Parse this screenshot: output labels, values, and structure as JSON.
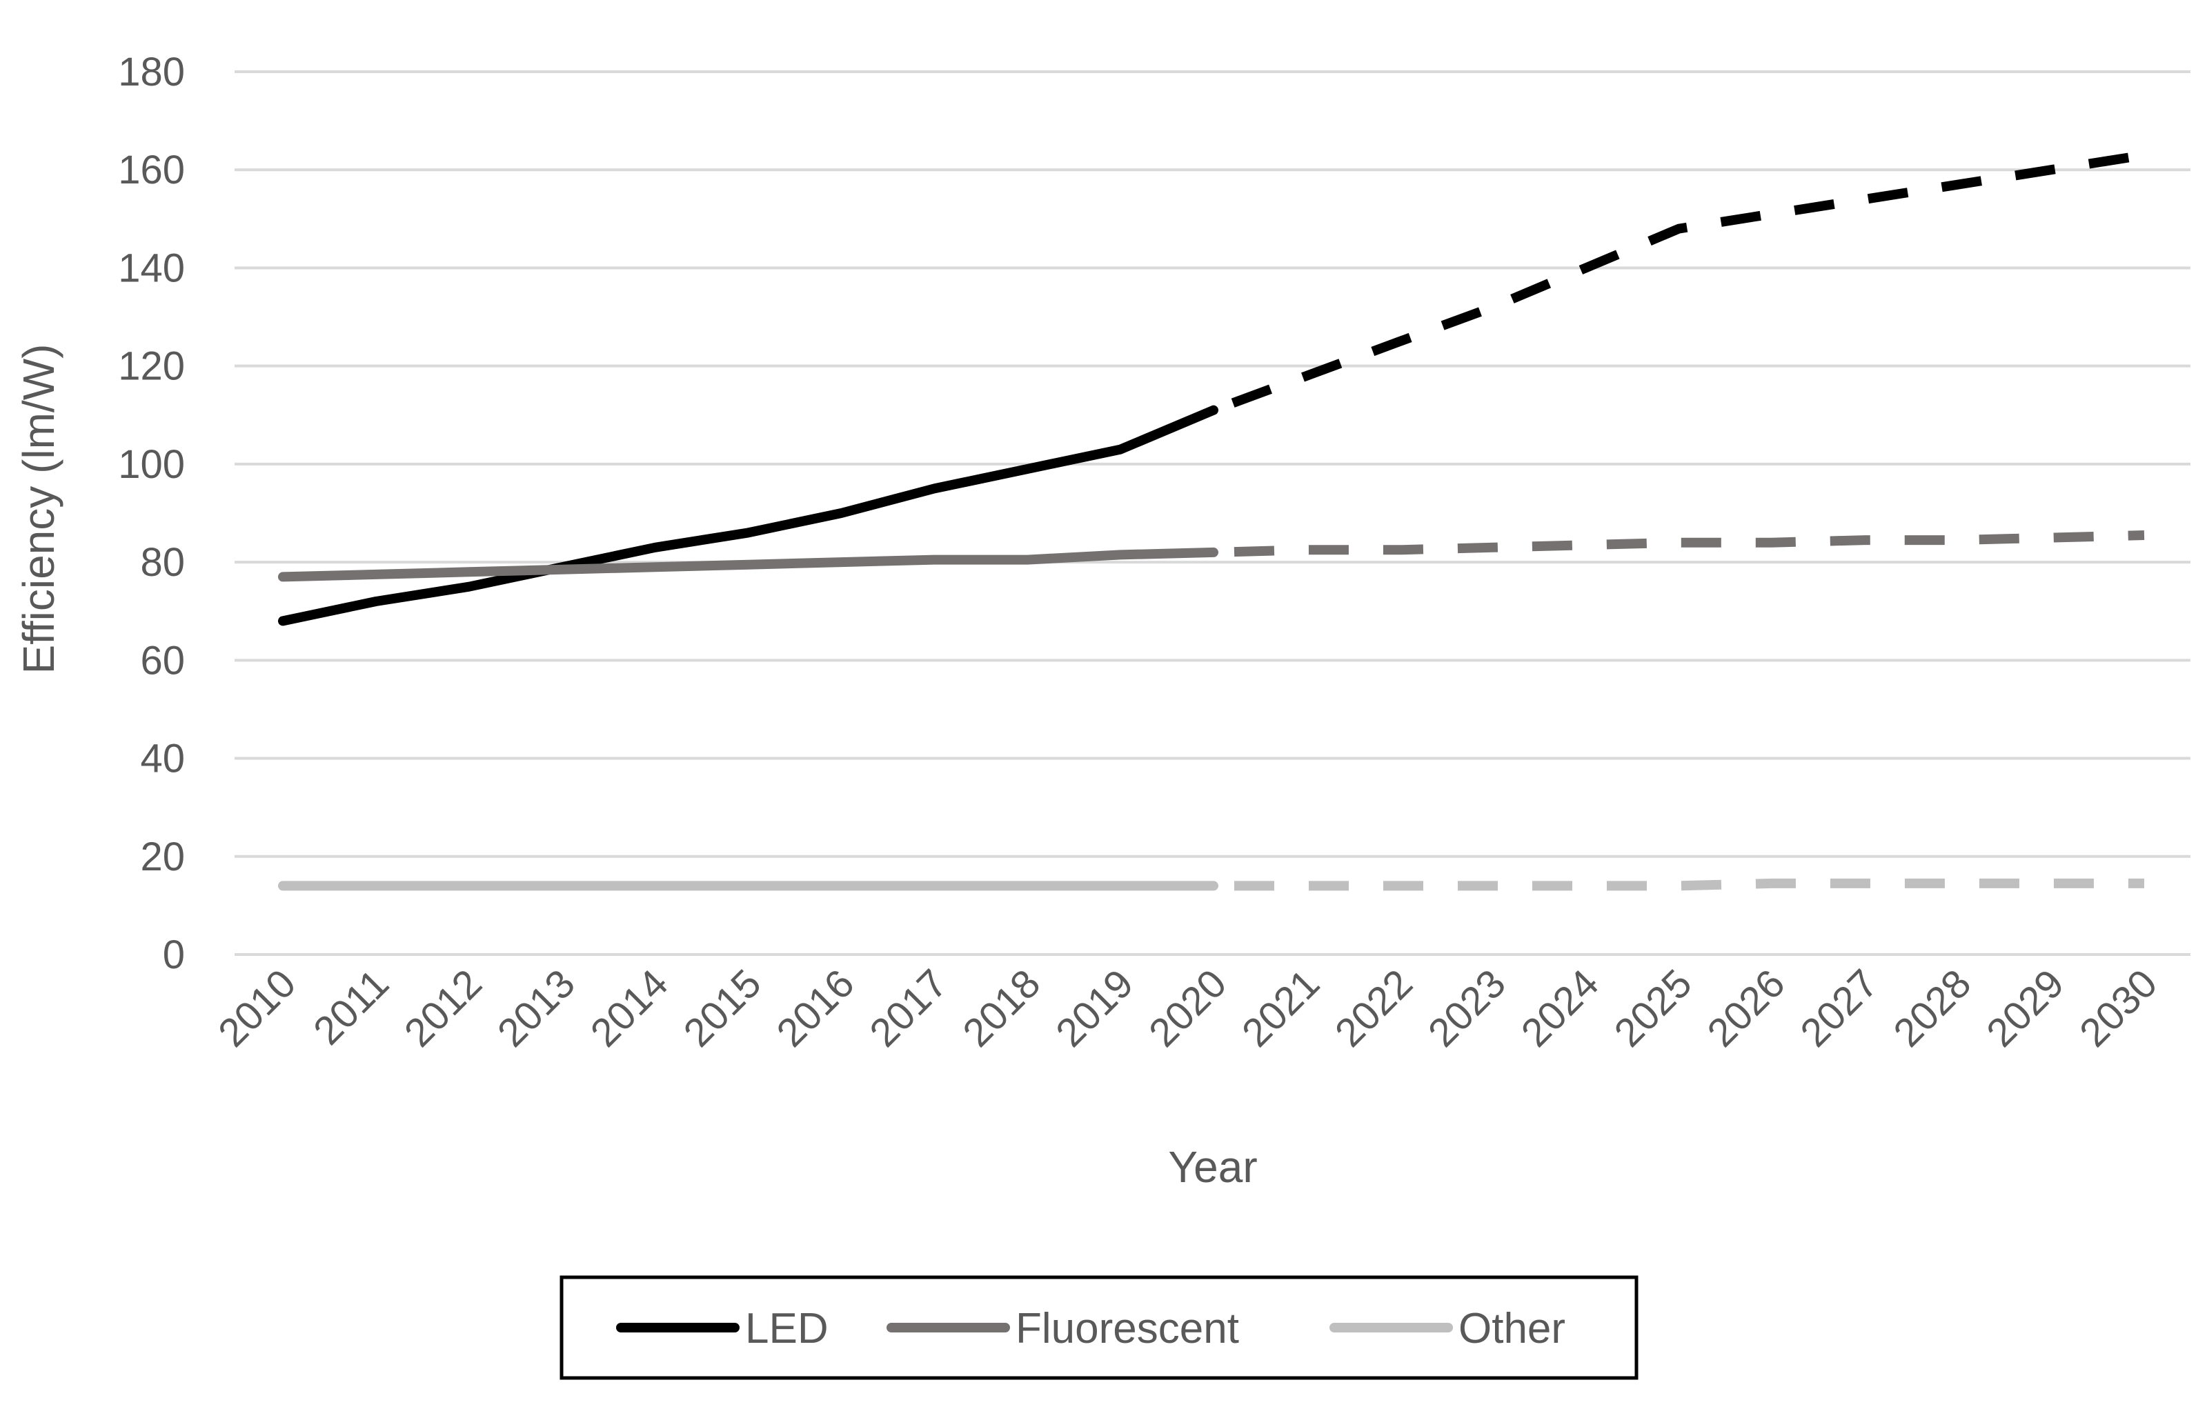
{
  "chart_data": {
    "type": "line",
    "xlabel": "Year",
    "ylabel": "Efficiency (lm/W)",
    "x": [
      2010,
      2011,
      2012,
      2013,
      2014,
      2015,
      2016,
      2017,
      2018,
      2019,
      2020,
      2021,
      2022,
      2023,
      2024,
      2025,
      2026,
      2027,
      2028,
      2029,
      2030
    ],
    "x_tick_labels": [
      "2010",
      "2011",
      "2012",
      "2013",
      "2014",
      "2015",
      "2016",
      "2017",
      "2018",
      "2019",
      "2020",
      "2021",
      "2022",
      "2023",
      "2024",
      "2025",
      "2026",
      "2027",
      "2028",
      "2029",
      "2030"
    ],
    "ylim": [
      0,
      180
    ],
    "y_ticks": [
      0,
      20,
      40,
      60,
      80,
      100,
      120,
      140,
      160,
      180
    ],
    "y_tick_labels": [
      "0",
      "20",
      "40",
      "60",
      "80",
      "100",
      "120",
      "140",
      "160",
      "180"
    ],
    "grid": true,
    "legend_position": "bottom",
    "projection_starts_at": 2020,
    "series": [
      {
        "name": "LED",
        "color": "#000000",
        "values": [
          68,
          72,
          75,
          79,
          83,
          86,
          90,
          95,
          99,
          103,
          111,
          118,
          125,
          132,
          140,
          148,
          151,
          154,
          157,
          160,
          163
        ]
      },
      {
        "name": "Fluorescent",
        "color": "#767171",
        "values": [
          77,
          77.5,
          78,
          78.5,
          79,
          79.5,
          80,
          80.5,
          80.5,
          81.5,
          82,
          82.5,
          82.5,
          83,
          83.5,
          84,
          84,
          84.5,
          84.5,
          85,
          85.5
        ]
      },
      {
        "name": "Other",
        "color": "#bfbfbf",
        "values": [
          14,
          14,
          14,
          14,
          14,
          14,
          14,
          14,
          14,
          14,
          14,
          14,
          14,
          14,
          14,
          14,
          14.5,
          14.5,
          14.5,
          14.5,
          14.5
        ]
      }
    ]
  }
}
